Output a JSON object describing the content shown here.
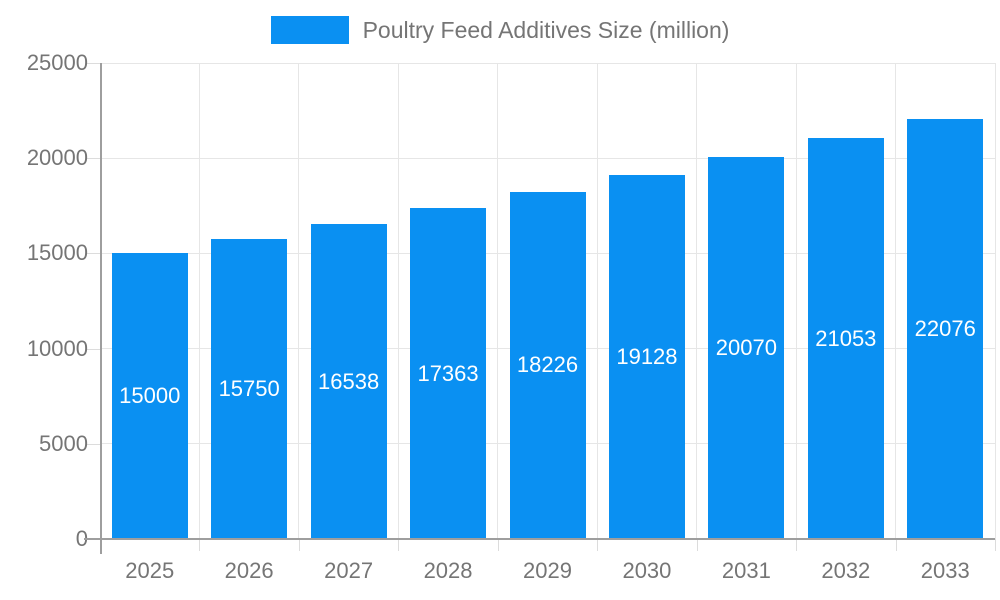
{
  "chart_data": {
    "type": "bar",
    "title": "Poultry Feed Additives Size (million)",
    "categories": [
      "2025",
      "2026",
      "2027",
      "2028",
      "2029",
      "2030",
      "2031",
      "2032",
      "2033"
    ],
    "values": [
      15000,
      15750,
      16538,
      17363,
      18226,
      19128,
      20070,
      21053,
      22076
    ],
    "xlabel": "",
    "ylabel": "",
    "ylim": [
      0,
      25000
    ],
    "ytick_interval": 5000,
    "ytick_labels": [
      "0",
      "5000",
      "10000",
      "15000",
      "20000",
      "25000"
    ],
    "grid": true,
    "legend_position": "top",
    "colors": {
      "bar": "#0a90f2",
      "bar_label": "#ffffff",
      "axis_text": "#757575",
      "legend_text": "#757575",
      "gridline": "#e6e6e6",
      "axis_line": "#9e9e9e"
    }
  }
}
